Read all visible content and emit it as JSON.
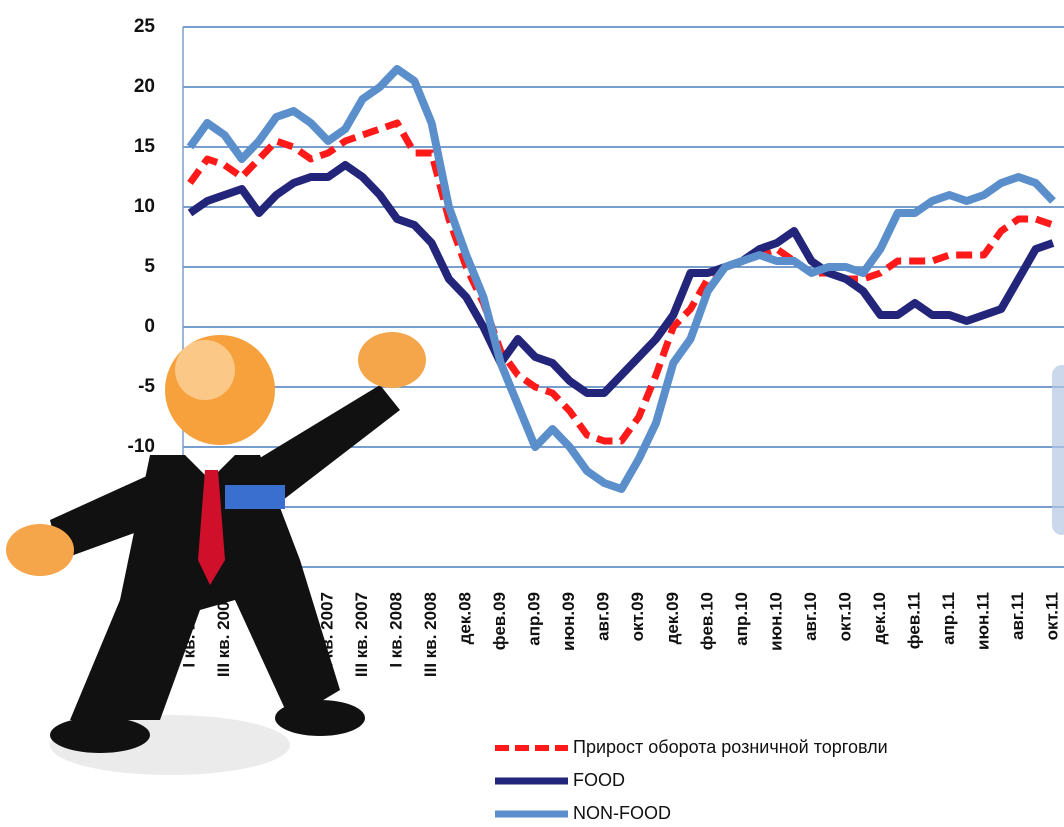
{
  "chart_data": {
    "type": "line",
    "categories": [
      "I кв. 2005",
      null,
      "III кв. 2005",
      null,
      null,
      null,
      null,
      null,
      "I кв. 2007",
      null,
      "III кв. 2007",
      null,
      "I кв. 2008",
      null,
      "III кв. 2008",
      null,
      "дек.08",
      null,
      "фев.09",
      null,
      "апр.09",
      null,
      "июн.09",
      null,
      "авг.09",
      null,
      "окт.09",
      null,
      "дек.09",
      null,
      "фев.10",
      null,
      "апр.10",
      null,
      "июн.10",
      null,
      "авг.10",
      null,
      "окт.10",
      null,
      "дек.10",
      null,
      "фев.11",
      null,
      "апр.11",
      null,
      "июн.11",
      null,
      "авг.11",
      null,
      "окт.11"
    ],
    "series": [
      {
        "name": "Прирост оборота розничной торговли",
        "color": "#ff1a1a",
        "dash": true,
        "values": [
          12,
          14,
          13.5,
          12.5,
          14,
          15.5,
          15,
          14,
          14.5,
          15.5,
          16,
          16.5,
          17,
          14.5,
          14.5,
          9,
          5,
          2,
          -2,
          -4,
          -5,
          -5.5,
          -7,
          -9,
          -9.5,
          -9.5,
          -7.5,
          -4,
          0,
          1.5,
          4,
          5,
          5.5,
          6,
          6.5,
          5.5,
          4.5,
          4.5,
          4,
          4,
          4.5,
          5.5,
          5.5,
          5.5,
          6,
          6,
          6,
          8,
          9,
          9,
          8.5
        ]
      },
      {
        "name": "FOOD",
        "color": "#23257a",
        "values": [
          9.5,
          10.5,
          11,
          11.5,
          9.5,
          11,
          12,
          12.5,
          12.5,
          13.5,
          12.5,
          11,
          9,
          8.5,
          7,
          4,
          2.5,
          0,
          -3,
          -1,
          -2.5,
          -3,
          -4.5,
          -5.5,
          -5.5,
          -4,
          -2.5,
          -1,
          1,
          4.5,
          4.5,
          5,
          5.5,
          6.5,
          7,
          8,
          5.5,
          4.5,
          4,
          3,
          1,
          1,
          2,
          1,
          1,
          0.5,
          1,
          1.5,
          4,
          6.5,
          7
        ]
      },
      {
        "name": "NON-FOOD",
        "color": "#5b8fcb",
        "values": [
          15,
          17,
          16,
          14,
          15.5,
          17.5,
          18,
          17,
          15.5,
          16.5,
          19,
          20,
          21.5,
          20.5,
          17,
          10,
          6,
          2.5,
          -3,
          -6.5,
          -10,
          -8.5,
          -10,
          -12,
          -13,
          -13.5,
          -11,
          -8,
          -3,
          -1,
          3,
          5,
          5.5,
          6,
          5.5,
          5.5,
          4.5,
          5,
          5,
          4.5,
          6.5,
          9.5,
          9.5,
          10.5,
          11,
          10.5,
          11,
          12,
          12.5,
          12,
          10.5
        ]
      }
    ],
    "ylim": [
      -20,
      25
    ],
    "yticks": [
      25,
      20,
      15,
      10,
      5,
      0,
      -5,
      -10,
      -15,
      -20
    ],
    "grid": true
  }
}
